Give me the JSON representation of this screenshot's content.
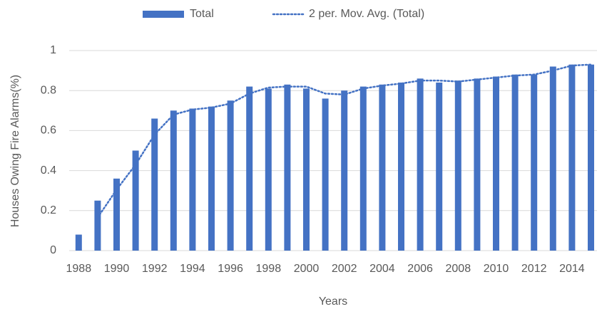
{
  "chart_data": {
    "type": "bar",
    "x_label": "Years",
    "y_label": "Houses Owing Fire Alarms(%)",
    "categories": [
      "1988",
      null,
      "1990",
      null,
      "1992",
      null,
      "1994",
      null,
      "1996",
      null,
      "1998",
      null,
      "2000",
      null,
      "2002",
      null,
      "2004",
      null,
      "2006",
      null,
      "2008",
      null,
      "2010",
      null,
      "2012",
      null,
      "2014",
      null
    ],
    "series": [
      {
        "name": "Total",
        "type": "bar",
        "color": "#4472c4",
        "values": [
          0.08,
          0.25,
          0.36,
          0.5,
          0.66,
          0.7,
          0.71,
          0.72,
          0.75,
          0.82,
          0.81,
          0.83,
          0.81,
          0.76,
          0.8,
          0.82,
          0.83,
          0.84,
          0.86,
          0.84,
          0.85,
          0.86,
          0.87,
          0.88,
          0.88,
          0.92,
          0.93,
          0.93
        ]
      },
      {
        "name": "2 per. Mov. Avg. (Total)",
        "type": "line",
        "color": "#4472c4",
        "values": [
          null,
          0.165,
          0.305,
          0.43,
          0.58,
          0.68,
          0.705,
          0.715,
          0.735,
          0.785,
          0.815,
          0.82,
          0.82,
          0.785,
          0.78,
          0.81,
          0.825,
          0.835,
          0.85,
          0.85,
          0.845,
          0.855,
          0.865,
          0.875,
          0.88,
          0.9,
          0.925,
          0.93
        ]
      }
    ],
    "ylim": [
      0,
      1
    ],
    "yticks": [
      0,
      0.2,
      0.4,
      0.6,
      0.8,
      1
    ],
    "grid": true,
    "legend": "top"
  }
}
